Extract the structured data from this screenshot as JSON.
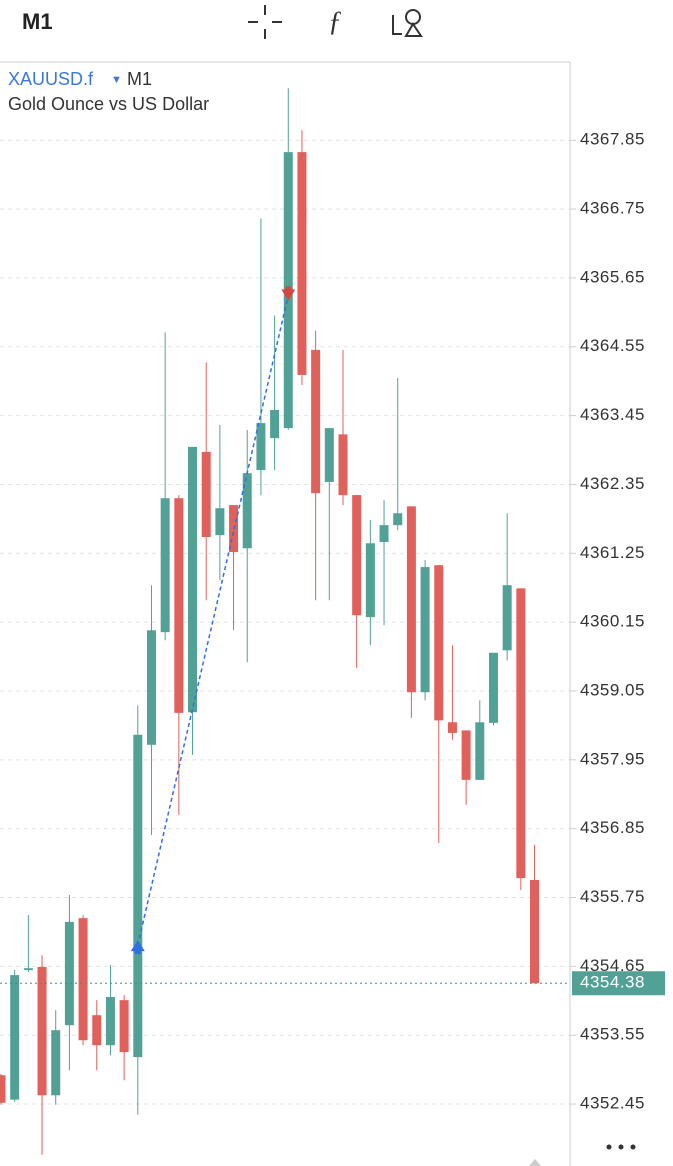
{
  "header": {
    "timeframe": "M1"
  },
  "chart_data": {
    "type": "candlestick",
    "symbol": "XAUUSD.f",
    "timeframe": "M1",
    "title": "Gold Ounce vs US Dollar",
    "up_color": "#52a197",
    "down_color": "#e0605b",
    "open": [
      4352.91,
      4352.52,
      4354.59,
      4354.64,
      4352.59,
      4353.71,
      4355.42,
      4353.87,
      4353.39,
      4354.11,
      4353.2,
      4358.19,
      4359.99,
      4362.13,
      4358.71,
      4362.87,
      4361.54,
      4362.02,
      4361.33,
      4362.58,
      4363.09,
      4363.25,
      4367.66,
      4364.5,
      4362.39,
      4363.15,
      4362.18,
      4360.23,
      4361.43,
      4361.7,
      4362.0,
      4359.03,
      4361.06,
      4358.55,
      4358.42,
      4357.63,
      4358.54,
      4359.7,
      4360.69,
      4356.03
    ],
    "high": [
      4352.93,
      4354.59,
      4355.47,
      4354.83,
      4353.95,
      4355.79,
      4355.47,
      4354.11,
      4354.67,
      4354.19,
      4358.82,
      4360.74,
      4364.78,
      4362.18,
      4362.95,
      4364.3,
      4363.3,
      4362.02,
      4363.22,
      4366.6,
      4365.05,
      4368.68,
      4368.01,
      4364.81,
      4363.25,
      4364.5,
      4362.18,
      4361.78,
      4362.1,
      4364.05,
      4362.0,
      4361.14,
      4361.06,
      4359.78,
      4358.42,
      4358.9,
      4359.66,
      4361.89,
      4360.69,
      4356.59
    ],
    "low": [
      4352.44,
      4352.48,
      4354.56,
      4351.64,
      4352.44,
      4352.99,
      4353.39,
      4352.99,
      4353.23,
      4352.83,
      4352.28,
      4356.75,
      4359.86,
      4357.07,
      4358.03,
      4360.5,
      4360.82,
      4360.02,
      4359.51,
      4362.18,
      4362.58,
      4363.22,
      4363.94,
      4360.5,
      4360.5,
      4362.02,
      4359.42,
      4359.78,
      4360.1,
      4361.62,
      4358.62,
      4358.9,
      4356.62,
      4358.27,
      4357.23,
      4357.63,
      4358.5,
      4359.54,
      4355.87,
      4354.38
    ],
    "close": [
      4352.47,
      4354.51,
      4354.62,
      4352.59,
      4353.63,
      4355.36,
      4353.47,
      4353.39,
      4354.16,
      4353.28,
      4358.35,
      4360.02,
      4362.13,
      4358.7,
      4362.95,
      4361.51,
      4361.97,
      4361.27,
      4362.53,
      4363.33,
      4363.54,
      4367.66,
      4364.1,
      4362.21,
      4363.25,
      4362.18,
      4360.26,
      4361.41,
      4361.7,
      4361.89,
      4359.03,
      4361.03,
      4358.58,
      4358.38,
      4357.63,
      4358.55,
      4359.66,
      4360.74,
      4356.06,
      4354.38
    ],
    "trade": {
      "open_index": 10,
      "open_price": 4354.99,
      "close_index": 21,
      "close_price": 4365.37
    },
    "last_price": 4354.38,
    "ylim": [
      4351.46,
      4369.1
    ],
    "yticks": [
      4367.85,
      4366.75,
      4365.65,
      4364.55,
      4363.45,
      4362.35,
      4361.25,
      4360.15,
      4359.05,
      4357.95,
      4356.85,
      4355.75,
      4354.65,
      4353.55,
      4352.45
    ],
    "grid": true
  }
}
